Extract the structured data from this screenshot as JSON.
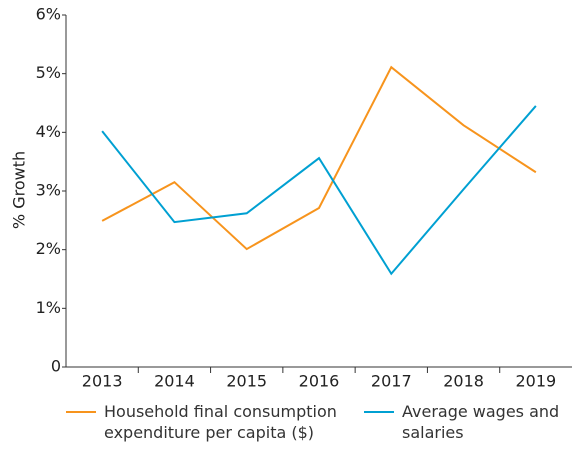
{
  "chart_data": {
    "type": "line",
    "y_label": "% Growth",
    "categories": [
      "2013",
      "2014",
      "2015",
      "2016",
      "2017",
      "2018",
      "2019"
    ],
    "series": [
      {
        "name": "Household final consumption expenditure per capita ($)",
        "color": "#f7941d",
        "values": [
          2.49,
          3.15,
          2.01,
          2.71,
          5.11,
          4.12,
          3.32
        ]
      },
      {
        "name": "Average wages and salaries",
        "color": "#00a0d2",
        "values": [
          4.02,
          2.47,
          2.62,
          3.56,
          1.59,
          3.03,
          4.45
        ]
      }
    ],
    "ylim": [
      0,
      6
    ],
    "yticks": [
      0,
      {
        "value": 1,
        "label": "1%"
      },
      {
        "value": 2,
        "label": "2%"
      },
      {
        "value": 3,
        "label": "3%"
      },
      {
        "value": 4,
        "label": "4%"
      },
      {
        "value": 5,
        "label": "5%"
      },
      {
        "value": 6,
        "label": "6%"
      }
    ],
    "grid": false,
    "legend": "bottom"
  }
}
